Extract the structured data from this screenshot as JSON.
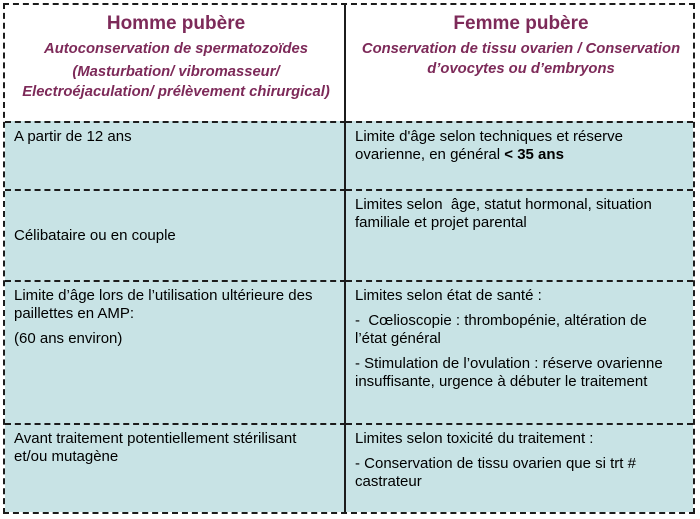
{
  "header": {
    "left": {
      "title": "Homme pubère",
      "subtitle": "Autoconservation de spermatozoïdes",
      "methods": "(Masturbation/ vibromasseur/\nElectroéjaculation/ prélèvement chirurgical)"
    },
    "right": {
      "title": "Femme pubère",
      "subtitle": "Conservation de tissu ovarien / Conservation\nd’ovocytes ou d’embryons"
    }
  },
  "rows": [
    {
      "left": {
        "p1": "A partir de 12 ans"
      },
      "right": {
        "p1_pre": "Limite d'âge selon techniques et réserve\novarienne, en général ",
        "p1_bold": "< 35 ans"
      }
    },
    {
      "left": {
        "p1": "Célibataire ou en couple"
      },
      "right": {
        "p1": "Limites selon  âge, statut hormonal, situation\nfamiliale et projet parental"
      }
    },
    {
      "left": {
        "p1": "Limite d’âge lors de l’utilisation ultérieure des\npaillettes en AMP:",
        "p2": "(60 ans environ)"
      },
      "right": {
        "p1": "Limites selon état de santé :",
        "p2": "-  Cœlioscopie : thrombopénie, altération de\nl’état général",
        "p3": "- Stimulation de l’ovulation : réserve ovarienne\ninsuffisante, urgence à débuter le traitement"
      }
    },
    {
      "left": {
        "p1": "Avant traitement potentiellement stérilisant\net/ou mutagène"
      },
      "right": {
        "p1": "Limites selon toxicité du traitement :",
        "p2": "- Conservation de tissu ovarien que si trt #\ncastrateur"
      }
    }
  ],
  "colors": {
    "header_text": "#7d2a59",
    "cell_background": "#c8e3e5",
    "border": "#1c1c1c"
  }
}
